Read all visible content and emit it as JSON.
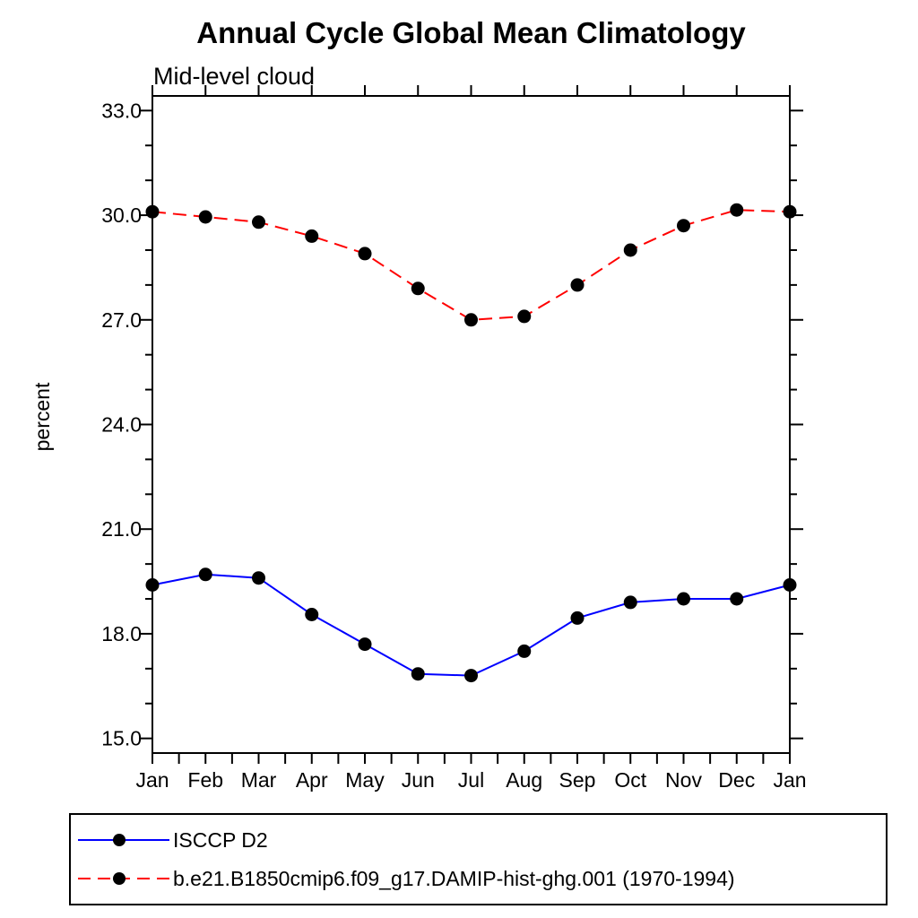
{
  "title": "Annual Cycle Global Mean Climatology",
  "subtitle": "Mid-level cloud",
  "chart_data": {
    "type": "line",
    "x_categories": [
      "Jan",
      "Feb",
      "Mar",
      "Apr",
      "May",
      "Jun",
      "Jul",
      "Aug",
      "Sep",
      "Oct",
      "Nov",
      "Dec",
      "Jan"
    ],
    "ylabel": "percent",
    "ylim": [
      14.58,
      33.42
    ],
    "yticks_major": [
      15.0,
      18.0,
      21.0,
      24.0,
      27.0,
      30.0,
      33.0
    ],
    "ytick_minor_step": 1.0,
    "xtick_minor_per_month": 2,
    "grid": false,
    "legend_position": "bottom-left-box",
    "series": [
      {
        "name": "ISCCP D2",
        "color": "#0000ff",
        "line_style": "solid",
        "marker": "filled-circle",
        "marker_color": "#000000",
        "values": [
          19.4,
          19.7,
          19.6,
          18.55,
          17.7,
          16.85,
          16.8,
          17.5,
          18.45,
          18.9,
          19.0,
          19.0,
          19.4
        ]
      },
      {
        "name": "b.e21.B1850cmip6.f09_g17.DAMIP-hist-ghg.001 (1970-1994)",
        "color": "#ff0000",
        "line_style": "dashed",
        "marker": "filled-circle",
        "marker_color": "#000000",
        "values": [
          30.1,
          29.95,
          29.8,
          29.4,
          28.9,
          27.9,
          27.0,
          27.1,
          28.0,
          29.0,
          29.7,
          30.15,
          30.1
        ]
      }
    ]
  },
  "colors": {
    "axis": "#000000",
    "background": "#ffffff",
    "series_blue": "#0000ff",
    "series_red": "#ff0000",
    "marker": "#000000"
  }
}
